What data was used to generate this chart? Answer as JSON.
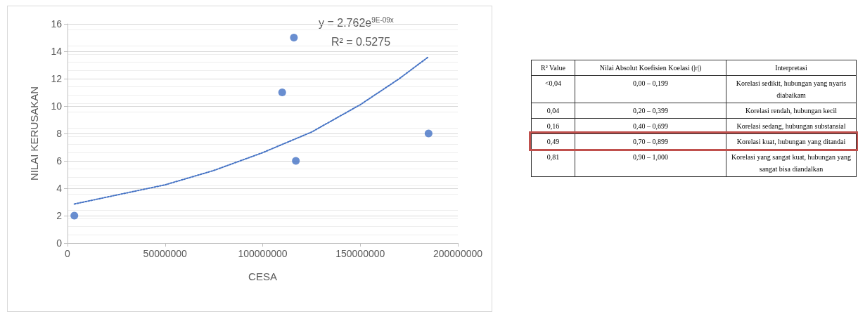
{
  "chart_data": [
    {
      "type": "scatter",
      "xlabel": "CESA",
      "ylabel": "NILAI KERUSAKAN",
      "xlim": [
        0,
        200000000
      ],
      "xticks": [
        0,
        50000000,
        100000000,
        150000000,
        200000000
      ],
      "ylim": [
        0,
        16
      ],
      "yticks": [
        0,
        2,
        4,
        6,
        8,
        10,
        12,
        14,
        16
      ],
      "grid": "y",
      "marker": "circle",
      "annotations": [
        "y = 2.762e$^{9E-09x}$",
        "R² = 0.5275"
      ],
      "series": [
        {
          "type": "scatter",
          "color": "#4472c4",
          "x": [
            3500000,
            110000000,
            116000000,
            117000000,
            185000000
          ],
          "values": [
            2,
            11,
            15,
            6,
            8
          ]
        },
        {
          "type": "line",
          "color": "#4472c4",
          "line_style": "dotted",
          "marker": "none",
          "x": [
            3500000,
            25000000,
            50000000,
            75000000,
            100000000,
            125000000,
            150000000,
            170000000,
            185000000
          ],
          "values": [
            2.85,
            3.5,
            4.25,
            5.3,
            6.6,
            8.1,
            10.1,
            12.0,
            13.6
          ]
        }
      ]
    },
    {
      "type": "other",
      "annotations": [
        "R² Value",
        "Nilai Absolut Koefisien Koelasi (|r|)",
        "Interpretasi",
        "<0,04",
        "0,00 – 0,199",
        "Korelasi sedikit, hubungan yang nyaris diabaikam",
        "0,04",
        "0,20 – 0,399",
        "Korelasi rendah, hubungan kecil",
        "0,16",
        "0,40 – 0,699",
        "Korelasi sedang, hubungan substansial",
        "0,49",
        "0,70 – 0,899",
        "Korelasi kuat, hubungan yang ditandai",
        "0,81",
        "0,90 – 1,000",
        "Korelasi yang sangat kuat, hubungan yang sangat bisa diandalkan"
      ]
    }
  ]
}
